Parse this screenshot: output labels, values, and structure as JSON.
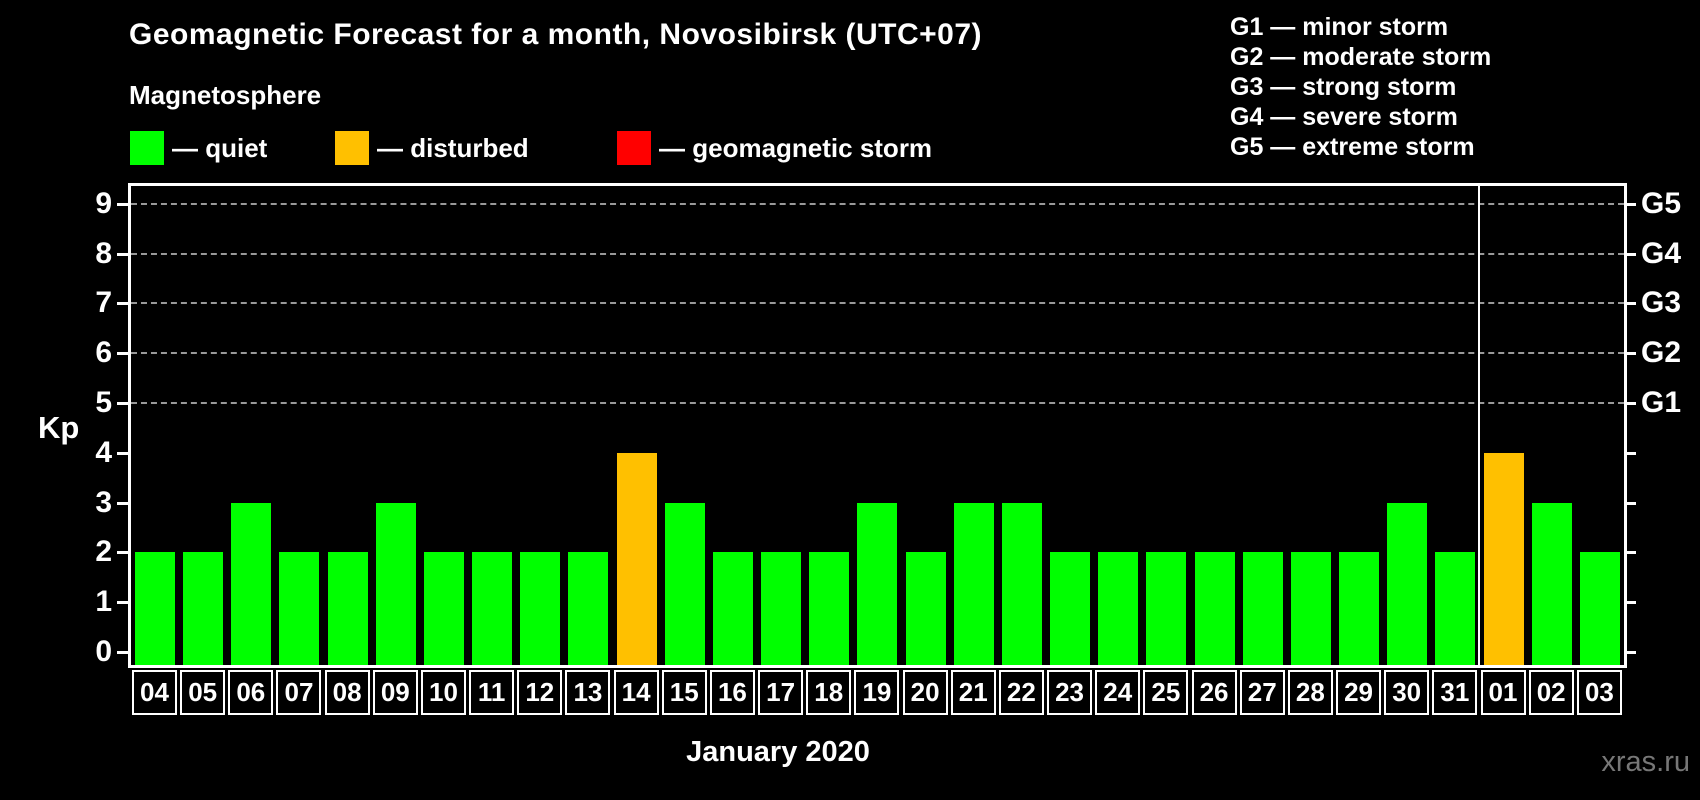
{
  "title": "Geomagnetic Forecast for a month, Novosibirsk (UTC+07)",
  "subtitle": "Magnetosphere",
  "colors": {
    "quiet": "#00FF00",
    "disturbed": "#FFC000",
    "storm": "#FF0000",
    "background": "#000000",
    "text": "#FFFFFF",
    "gridline": "#999999",
    "watermark_text": "#777777"
  },
  "legend": {
    "items": [
      {
        "key": "quiet",
        "label": "— quiet"
      },
      {
        "key": "disturbed",
        "label": "— disturbed"
      },
      {
        "key": "storm",
        "label": "— geomagnetic storm"
      }
    ]
  },
  "storm_scale": [
    "G1 — minor storm",
    "G2 — moderate storm",
    "G3 — strong storm",
    "G4 — severe storm",
    "G5 — extreme storm"
  ],
  "axis": {
    "y_label": "Kp",
    "x_label": "January 2020"
  },
  "watermark": "xras.ru",
  "chart_data": {
    "type": "bar",
    "title": "Geomagnetic Forecast for a month, Novosibirsk (UTC+07)",
    "xlabel": "January 2020",
    "ylabel": "Kp",
    "ylim": [
      0,
      9
    ],
    "grid": "dashed horizontal at Kp 5-9 only",
    "legend_position": "top-left",
    "categories": [
      "04",
      "05",
      "06",
      "07",
      "08",
      "09",
      "10",
      "11",
      "12",
      "13",
      "14",
      "15",
      "16",
      "17",
      "18",
      "19",
      "20",
      "21",
      "22",
      "23",
      "24",
      "25",
      "26",
      "27",
      "28",
      "29",
      "30",
      "31",
      "01",
      "02",
      "03"
    ],
    "values": [
      2,
      2,
      3,
      2,
      2,
      3,
      2,
      2,
      2,
      2,
      4,
      3,
      2,
      2,
      2,
      3,
      2,
      3,
      3,
      2,
      2,
      2,
      2,
      2,
      2,
      2,
      3,
      2,
      4,
      3,
      2
    ],
    "statuses": [
      "quiet",
      "quiet",
      "quiet",
      "quiet",
      "quiet",
      "quiet",
      "quiet",
      "quiet",
      "quiet",
      "quiet",
      "disturbed",
      "quiet",
      "quiet",
      "quiet",
      "quiet",
      "quiet",
      "quiet",
      "quiet",
      "quiet",
      "quiet",
      "quiet",
      "quiet",
      "quiet",
      "quiet",
      "quiet",
      "quiet",
      "quiet",
      "quiet",
      "disturbed",
      "quiet",
      "quiet"
    ],
    "y_ticks": [
      0,
      1,
      2,
      3,
      4,
      5,
      6,
      7,
      8,
      9
    ],
    "gridlines_at": [
      5,
      6,
      7,
      8,
      9
    ],
    "right_axis_labels": [
      {
        "kp": 5,
        "label": "G1"
      },
      {
        "kp": 6,
        "label": "G2"
      },
      {
        "kp": 7,
        "label": "G3"
      },
      {
        "kp": 8,
        "label": "G4"
      },
      {
        "kp": 9,
        "label": "G5"
      }
    ],
    "month_divider_after_index": 27
  }
}
